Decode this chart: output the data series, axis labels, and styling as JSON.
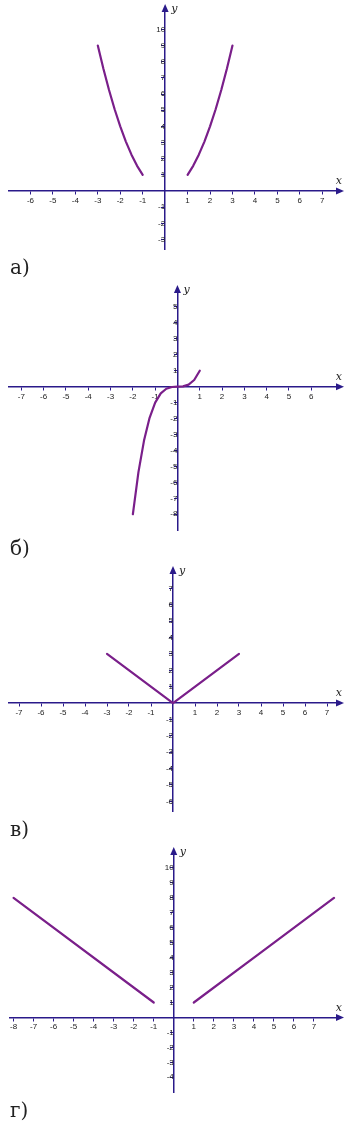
{
  "chart_data": [
    {
      "type": "line",
      "title": "а)",
      "xlabel": "x",
      "ylabel": "y",
      "xlim": [
        -7,
        7.7
      ],
      "ylim": [
        -3.6,
        11.2
      ],
      "xticks": [
        -6,
        -5,
        -4,
        -3,
        -2,
        -1,
        1,
        2,
        3,
        4,
        5,
        6,
        7
      ],
      "yticks": [
        -3,
        -2,
        -1,
        1,
        2,
        3,
        4,
        5,
        6,
        7,
        8,
        9,
        10
      ],
      "grid": false,
      "series": [
        {
          "color": "#7a1f8a",
          "x": [
            -3,
            -2.75,
            -2.5,
            -2.25,
            -2,
            -1.75,
            -1.5,
            -1.25,
            -1
          ],
          "values": [
            9,
            7.56,
            6.25,
            5.06,
            4,
            3.06,
            2.25,
            1.56,
            1
          ]
        },
        {
          "color": "#7a1f8a",
          "x": [
            1,
            1.25,
            1.5,
            1.75,
            2,
            2.25,
            2.5,
            2.75,
            3
          ],
          "values": [
            1,
            1.56,
            2.25,
            3.06,
            4,
            5.06,
            6.25,
            7.56,
            9
          ]
        }
      ]
    },
    {
      "type": "line",
      "title": "б)",
      "xlabel": "x",
      "ylabel": "y",
      "xlim": [
        -7.6,
        7.2
      ],
      "ylim": [
        -9,
        6
      ],
      "xticks": [
        -7,
        -6,
        -5,
        -4,
        -3,
        -2,
        -1,
        1,
        2,
        3,
        4,
        5,
        6
      ],
      "yticks": [
        -8,
        -7,
        -6,
        -5,
        -4,
        -3,
        -2,
        -1,
        1,
        2,
        3,
        4,
        5
      ],
      "grid": false,
      "series": [
        {
          "color": "#7a1f8a",
          "x": [
            -2,
            -1.75,
            -1.5,
            -1.25,
            -1,
            -0.75,
            -0.5,
            -0.25,
            0,
            0.25,
            0.5,
            0.75,
            1
          ],
          "values": [
            -8,
            -5.36,
            -3.38,
            -1.95,
            -1,
            -0.42,
            -0.13,
            -0.02,
            0,
            0.02,
            0.13,
            0.42,
            1
          ]
        }
      ]
    },
    {
      "type": "line",
      "title": "в)",
      "xlabel": "x",
      "ylabel": "y",
      "xlim": [
        -7.5,
        7.5
      ],
      "ylim": [
        -6.6,
        8
      ],
      "xticks": [
        -7,
        -6,
        -5,
        -4,
        -3,
        -2,
        -1,
        1,
        2,
        3,
        4,
        5,
        6,
        7
      ],
      "yticks": [
        -6,
        -5,
        -4,
        -3,
        -2,
        -1,
        1,
        2,
        3,
        4,
        5,
        6,
        7
      ],
      "grid": false,
      "series": [
        {
          "color": "#7a1f8a",
          "x": [
            -3,
            0,
            3
          ],
          "values": [
            3,
            0,
            3
          ]
        }
      ]
    },
    {
      "type": "line",
      "title": "г)",
      "xlabel": "x",
      "ylabel": "y",
      "xlim": [
        -8.2,
        8.2
      ],
      "ylim": [
        -5,
        11
      ],
      "xticks": [
        -8,
        -7,
        -6,
        -5,
        -4,
        -3,
        -2,
        -1,
        1,
        2,
        3,
        4,
        5,
        6,
        7
      ],
      "yticks": [
        -4,
        -3,
        -2,
        -1,
        1,
        2,
        3,
        4,
        5,
        6,
        7,
        8,
        9,
        10
      ],
      "grid": false,
      "series": [
        {
          "color": "#7a1f8a",
          "x": [
            -8,
            -1
          ],
          "values": [
            8,
            1
          ]
        },
        {
          "color": "#7a1f8a",
          "x": [
            1,
            8
          ],
          "values": [
            1,
            8
          ]
        }
      ]
    }
  ]
}
